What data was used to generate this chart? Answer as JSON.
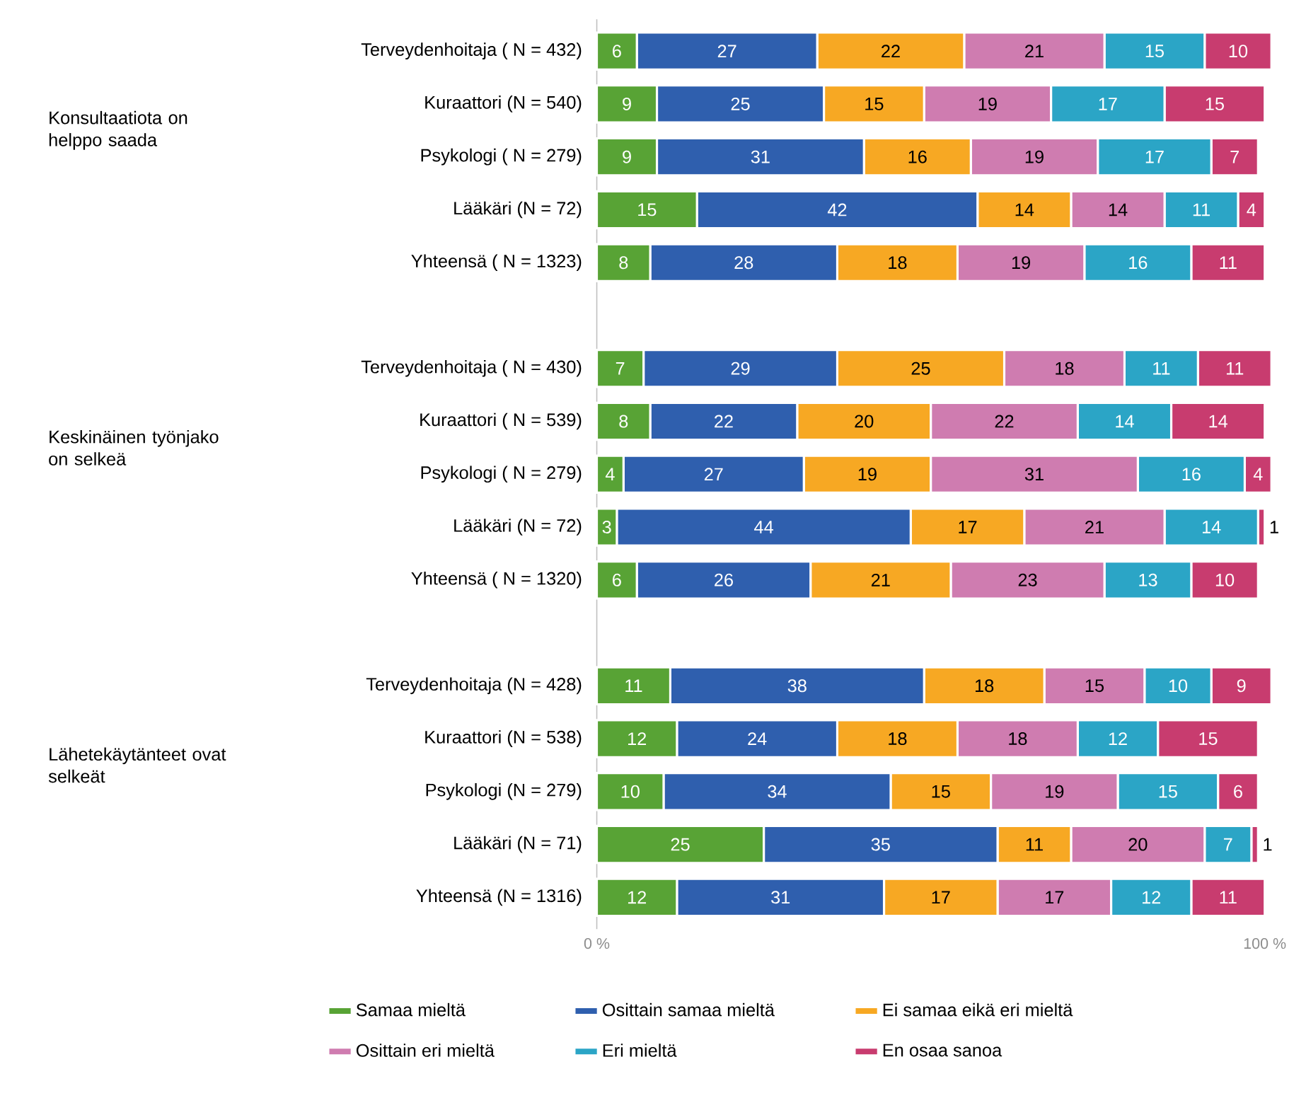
{
  "chart_data": {
    "type": "bar",
    "orientation": "horizontal",
    "stacked": true,
    "data_labels": true,
    "grid": false,
    "legend": "bottom",
    "categories": [
      "Terveydenhoitaja ( N = 432)",
      "Kuraattori (N = 540)",
      "Psykologi ( N = 279)",
      "Lääkäri (N = 72)",
      "Yhteensä ( N = 1323)",
      null,
      "Terveydenhoitaja ( N = 430)",
      "Kuraattori ( N = 539)",
      "Psykologi ( N = 279)",
      "Lääkäri (N = 72)",
      "Yhteensä ( N = 1320)",
      null,
      "Terveydenhoitaja (N = 428)",
      "Kuraattori (N = 538)",
      "Psykologi (N = 279)",
      "Lääkäri (N = 71)",
      "Yhteensä (N = 1316)"
    ],
    "annotations": [
      "Konsultaatiota on helppo saada",
      "Keskinäinen työnjako on selkeä",
      "Lähetekäytänteet ovat selkeät"
    ],
    "xlim": [
      0,
      101
    ],
    "xticks": [
      {
        "value": 0,
        "label": "0 %"
      },
      {
        "value": 100,
        "label": "100 %"
      }
    ],
    "series": [
      {
        "name": "Samaa mieltä",
        "color": "#58a335",
        "values": [
          6,
          9,
          9,
          15,
          8,
          null,
          7,
          8,
          4,
          3,
          6,
          null,
          11,
          12,
          10,
          25,
          12
        ]
      },
      {
        "name": "Osittain samaa mieltä",
        "color": "#2f5fae",
        "values": [
          27,
          25,
          31,
          42,
          28,
          null,
          29,
          22,
          27,
          44,
          26,
          null,
          38,
          24,
          34,
          35,
          31
        ]
      },
      {
        "name": "Ei samaa eikä eri mieltä",
        "color": "#f7a823",
        "values": [
          22,
          15,
          16,
          14,
          18,
          null,
          25,
          20,
          19,
          17,
          21,
          null,
          18,
          18,
          15,
          11,
          17
        ]
      },
      {
        "name": "Osittain eri mieltä",
        "color": "#cf7cb0",
        "values": [
          21,
          19,
          19,
          14,
          19,
          null,
          18,
          22,
          31,
          21,
          23,
          null,
          15,
          18,
          19,
          20,
          17
        ]
      },
      {
        "name": "Eri mieltä",
        "color": "#2ba5c6",
        "values": [
          15,
          17,
          17,
          11,
          16,
          null,
          11,
          14,
          16,
          14,
          13,
          null,
          10,
          12,
          15,
          7,
          12
        ]
      },
      {
        "name": "En osaa sanoa",
        "color": "#c83c6f",
        "values": [
          10,
          15,
          7,
          4,
          11,
          null,
          11,
          14,
          4,
          1,
          10,
          null,
          9,
          15,
          6,
          1,
          11
        ]
      }
    ]
  }
}
